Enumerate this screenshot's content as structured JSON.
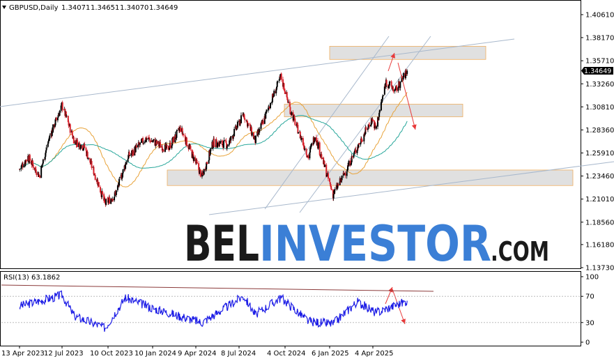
{
  "header": {
    "symbol_label": "GBPUSD,Daily",
    "ohlc": [
      "1.34071",
      "1.34651",
      "1.34070",
      "1.34649"
    ]
  },
  "price_tag": "1.34649",
  "rsi_label": "RSI(13) 63.1862",
  "watermark": {
    "part1": "BEL",
    "part2": "INVESTOR",
    "part3": ".COM"
  },
  "colors": {
    "bull_candle": "#000000",
    "bear_candle": "#d8202a",
    "ma_fast": "#e8a33a",
    "ma_slow": "#26a69a",
    "trendline": "#a8b8cc",
    "zone_fill": "#e0e0e0",
    "zone_border": "#f0b060",
    "arrow": "#e83a3a",
    "rsi_line": "#1e1ee6",
    "rsi_trendline": "#8b3a3a",
    "watermark_blue": "#3b7fd6"
  },
  "chart_data": [
    {
      "type": "candlestick",
      "symbol": "GBPUSD",
      "timeframe": "Daily",
      "y_ticks": [
        "1.40610",
        "1.38170",
        "1.35710",
        "1.33260",
        "1.30810",
        "1.28360",
        "1.25910",
        "1.23460",
        "1.21010",
        "1.18560",
        "1.16180",
        "1.13730"
      ],
      "ylim": [
        1.1373,
        1.4061
      ],
      "x_ticks": [
        "13 Apr 2023",
        "12 Jul 2023",
        "10 Oct 2023",
        "10 Jan 2024",
        "9 Apr 2024",
        "8 Jul 2024",
        "4 Oct 2024",
        "6 Jan 2025",
        "4 Apr 2025"
      ],
      "last_close": 1.34649,
      "price_path": [
        {
          "date": "13 Apr 2023",
          "price": 1.242
        },
        {
          "date": "1 May 2023",
          "price": 1.255
        },
        {
          "date": "25 May 2023",
          "price": 1.235
        },
        {
          "date": "15 Jun 2023",
          "price": 1.275
        },
        {
          "date": "12 Jul 2023",
          "price": 1.31
        },
        {
          "date": "5 Aug 2023",
          "price": 1.272
        },
        {
          "date": "25 Aug 2023",
          "price": 1.265
        },
        {
          "date": "20 Sep 2023",
          "price": 1.228
        },
        {
          "date": "4 Oct 2023",
          "price": 1.205
        },
        {
          "date": "25 Oct 2023",
          "price": 1.215
        },
        {
          "date": "20 Nov 2023",
          "price": 1.255
        },
        {
          "date": "28 Dec 2023",
          "price": 1.275
        },
        {
          "date": "10 Feb 2024",
          "price": 1.263
        },
        {
          "date": "8 Mar 2024",
          "price": 1.285
        },
        {
          "date": "22 Apr 2024",
          "price": 1.234
        },
        {
          "date": "15 May 2024",
          "price": 1.27
        },
        {
          "date": "15 Jun 2024",
          "price": 1.268
        },
        {
          "date": "17 Jul 2024",
          "price": 1.3
        },
        {
          "date": "8 Aug 2024",
          "price": 1.272
        },
        {
          "date": "26 Sep 2024",
          "price": 1.34
        },
        {
          "date": "15 Oct 2024",
          "price": 1.305
        },
        {
          "date": "22 Nov 2024",
          "price": 1.255
        },
        {
          "date": "6 Dec 2024",
          "price": 1.278
        },
        {
          "date": "13 Jan 2025",
          "price": 1.215
        },
        {
          "date": "3 Feb 2025",
          "price": 1.235
        },
        {
          "date": "3 Mar 2025",
          "price": 1.265
        },
        {
          "date": "2 Apr 2025",
          "price": 1.295
        },
        {
          "date": "10 Apr 2025",
          "price": 1.285
        },
        {
          "date": "1 May 2025",
          "price": 1.335
        },
        {
          "date": "20 May 2025",
          "price": 1.325
        },
        {
          "date": "13 Jun 2025",
          "price": 1.346
        }
      ],
      "indicators": [
        "moving average (orange)",
        "moving average (teal)"
      ]
    },
    {
      "type": "line",
      "name": "RSI(13)",
      "value": 63.1862,
      "y_ticks": [
        "100",
        "70",
        "30",
        "0"
      ],
      "ylim": [
        0,
        100
      ],
      "rsi_path": [
        {
          "date": "13 Apr 2023",
          "rsi": 55
        },
        {
          "date": "12 Jul 2023",
          "rsi": 72
        },
        {
          "date": "5 Aug 2023",
          "rsi": 40
        },
        {
          "date": "4 Oct 2023",
          "rsi": 22
        },
        {
          "date": "15 Nov 2023",
          "rsi": 68
        },
        {
          "date": "10 Jan 2024",
          "rsi": 52
        },
        {
          "date": "22 Apr 2024",
          "rsi": 30
        },
        {
          "date": "17 Jul 2024",
          "rsi": 70
        },
        {
          "date": "8 Aug 2024",
          "rsi": 42
        },
        {
          "date": "26 Sep 2024",
          "rsi": 68
        },
        {
          "date": "22 Nov 2024",
          "rsi": 32
        },
        {
          "date": "13 Jan 2025",
          "rsi": 28
        },
        {
          "date": "3 Mar 2025",
          "rsi": 62
        },
        {
          "date": "10 Apr 2025",
          "rsi": 45
        },
        {
          "date": "13 Jun 2025",
          "rsi": 63
        }
      ]
    }
  ]
}
